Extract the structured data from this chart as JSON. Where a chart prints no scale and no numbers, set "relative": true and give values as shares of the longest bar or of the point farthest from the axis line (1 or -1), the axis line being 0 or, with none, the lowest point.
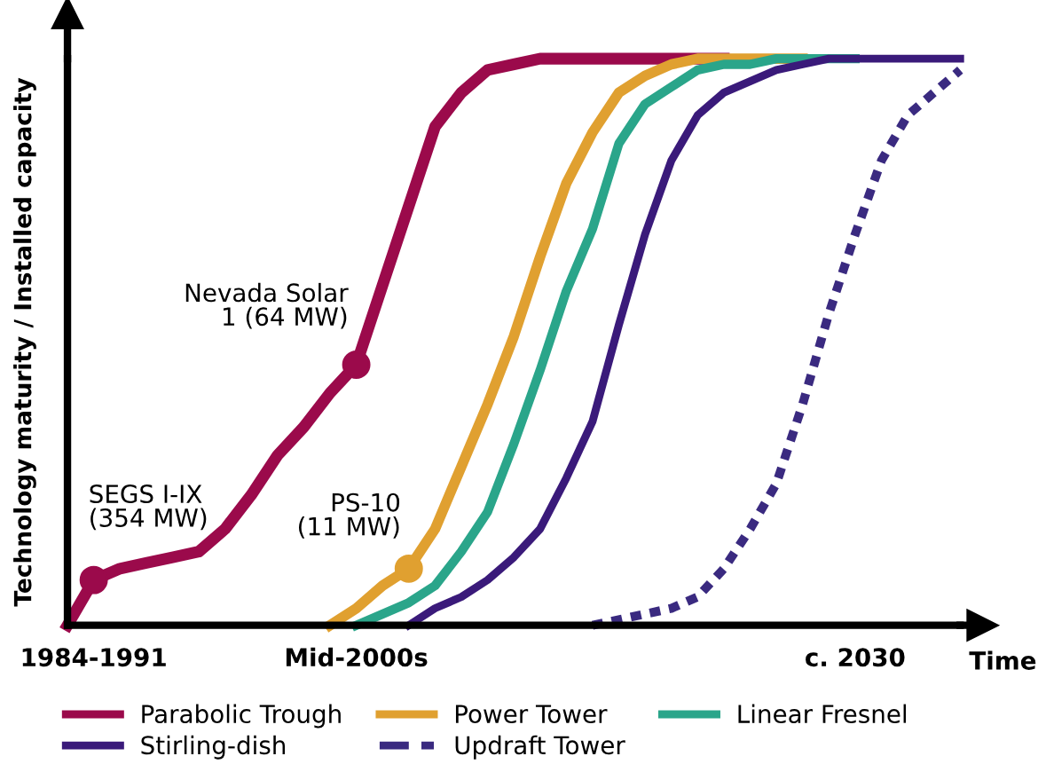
{
  "chart_data": {
    "type": "line",
    "relative": true,
    "xlabel": "Time",
    "ylabel": "Technology maturity / Installed capacity",
    "categories": [
      null,
      "1984-1991",
      null,
      null,
      null,
      null,
      null,
      null,
      null,
      null,
      null,
      "Mid-2000s",
      null,
      null,
      null,
      null,
      null,
      null,
      null,
      null,
      null,
      null,
      null,
      null,
      null,
      null,
      null,
      null,
      null,
      null,
      "c. 2030",
      null,
      null,
      null,
      null
    ],
    "legend": "bottom",
    "series": [
      {
        "name": "Parabolic Trough",
        "color": "#9b0a4b",
        "line_style": "solid",
        "values": [
          0,
          0.08,
          0.1,
          0.11,
          0.12,
          0.13,
          0.17,
          0.23,
          0.3,
          0.35,
          0.41,
          0.46,
          0.6,
          0.74,
          0.88,
          0.94,
          0.98,
          0.99,
          1,
          1,
          1,
          1,
          1,
          1,
          1,
          1,
          null,
          null,
          null,
          null,
          null,
          null,
          null,
          null,
          null
        ]
      },
      {
        "name": "Power Tower",
        "color": "#e0a030",
        "line_style": "solid",
        "values": [
          null,
          null,
          null,
          null,
          null,
          null,
          null,
          null,
          null,
          null,
          0,
          0.03,
          0.07,
          0.1,
          0.17,
          0.28,
          0.39,
          0.51,
          0.65,
          0.78,
          0.87,
          0.94,
          0.97,
          0.99,
          1,
          1,
          1,
          1,
          1,
          null,
          null,
          null,
          null,
          null,
          null
        ]
      },
      {
        "name": "Linear Fresnel",
        "color": "#2aa58a",
        "line_style": "solid",
        "values": [
          null,
          null,
          null,
          null,
          null,
          null,
          null,
          null,
          null,
          null,
          null,
          0,
          0.02,
          0.04,
          0.07,
          0.13,
          0.2,
          0.32,
          0.45,
          0.59,
          0.7,
          0.85,
          0.92,
          0.95,
          0.98,
          0.99,
          0.99,
          1,
          1,
          1,
          1,
          null,
          null,
          null,
          null
        ]
      },
      {
        "name": "Stirling-dish",
        "color": "#3a1a7a",
        "line_style": "solid",
        "values": [
          null,
          null,
          null,
          null,
          null,
          null,
          null,
          null,
          null,
          null,
          null,
          null,
          null,
          0,
          0.03,
          0.05,
          0.08,
          0.12,
          0.17,
          0.26,
          0.36,
          0.53,
          0.69,
          0.82,
          0.9,
          0.94,
          0.96,
          0.98,
          0.99,
          1,
          1,
          1,
          1,
          1,
          1
        ]
      },
      {
        "name": "Updraft Tower",
        "color": "#3a2a80",
        "line_style": "dotted",
        "values": [
          null,
          null,
          null,
          null,
          null,
          null,
          null,
          null,
          null,
          null,
          null,
          null,
          null,
          null,
          null,
          null,
          null,
          null,
          null,
          null,
          0,
          0.01,
          0.02,
          0.03,
          0.05,
          0.1,
          0.17,
          0.25,
          0.39,
          0.55,
          0.69,
          0.82,
          0.9,
          0.94,
          0.98
        ]
      },
      {
        "type": "scatter",
        "marker": "circle",
        "color": "#9b0a4b",
        "values": [
          null,
          0.08,
          null,
          null,
          null,
          null,
          null,
          null,
          null,
          null,
          null,
          0.46,
          null,
          null,
          null,
          null,
          null,
          null,
          null,
          null,
          null,
          null,
          null,
          null,
          null,
          null,
          null,
          null,
          null,
          null,
          null,
          null,
          null,
          null,
          null
        ]
      },
      {
        "type": "scatter",
        "marker": "circle",
        "color": "#e0a030",
        "values": [
          null,
          null,
          null,
          null,
          null,
          null,
          null,
          null,
          null,
          null,
          null,
          null,
          null,
          0.1,
          null,
          null,
          null,
          null,
          null,
          null,
          null,
          null,
          null,
          null,
          null,
          null,
          null,
          null,
          null,
          null,
          null,
          null,
          null,
          null,
          null
        ]
      }
    ],
    "annotations": [
      "SEGS I-IX\n(354 MW)",
      "Nevada Solar\n1 (64 MW)",
      "PS-10\n(11 MW)"
    ]
  }
}
